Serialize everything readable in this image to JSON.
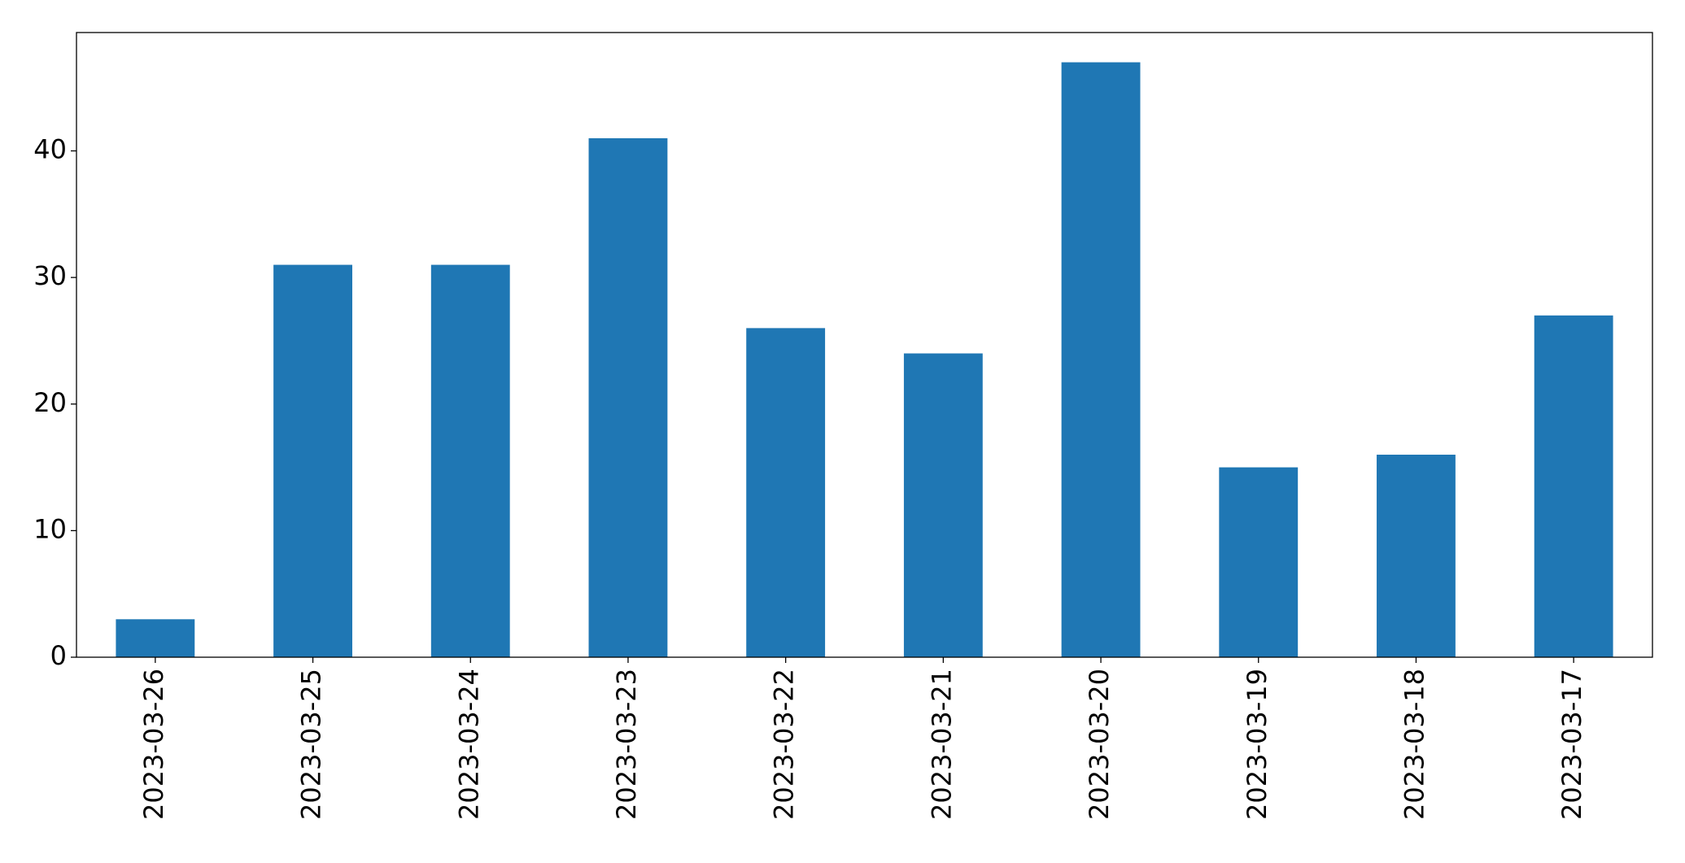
{
  "chart_data": {
    "type": "bar",
    "categories": [
      "2023-03-26",
      "2023-03-25",
      "2023-03-24",
      "2023-03-23",
      "2023-03-22",
      "2023-03-21",
      "2023-03-20",
      "2023-03-19",
      "2023-03-18",
      "2023-03-17"
    ],
    "values": [
      3,
      31,
      31,
      41,
      26,
      24,
      47,
      15,
      16,
      27
    ],
    "color": "#1f77b4",
    "ylim": [
      0,
      49.35
    ],
    "yticks": [
      0,
      10,
      20,
      30,
      40
    ],
    "grid": false
  }
}
